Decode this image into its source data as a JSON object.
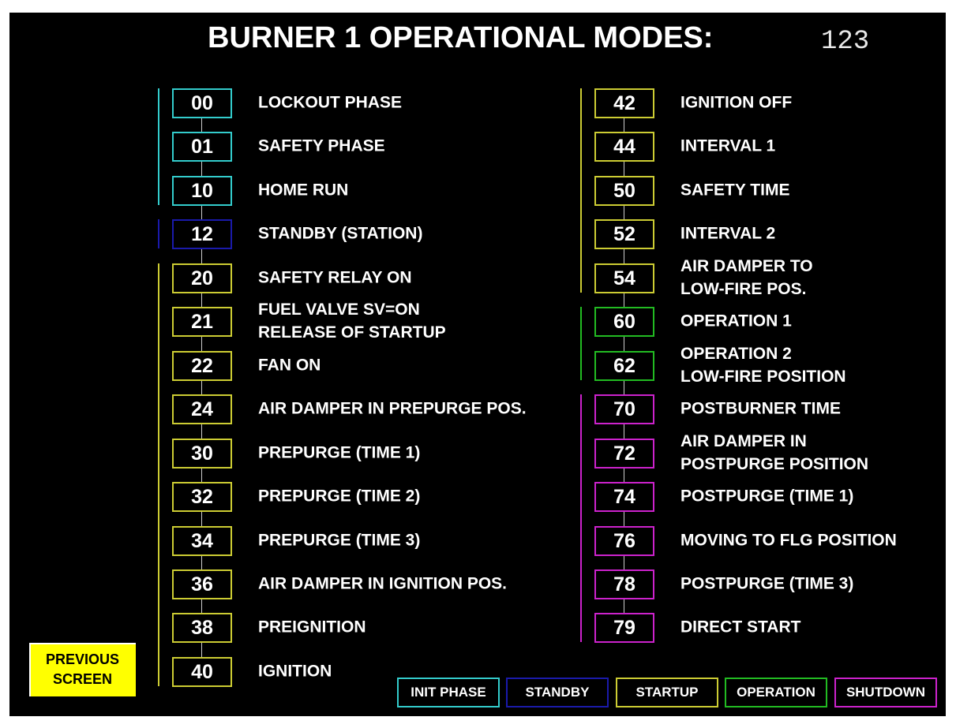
{
  "title": "BURNER 1 OPERATIONAL MODES:",
  "current_mode": "123",
  "colors": {
    "init": "#33cccc",
    "standby": "#1a1aaa",
    "startup": "#cccc33",
    "operation": "#22bb22",
    "shutdown": "#cc22cc"
  },
  "left_column": [
    {
      "code": "00",
      "label": "LOCKOUT PHASE",
      "group": "init"
    },
    {
      "code": "01",
      "label": "SAFETY PHASE",
      "group": "init"
    },
    {
      "code": "10",
      "label": "HOME RUN",
      "group": "init"
    },
    {
      "code": "12",
      "label": "STANDBY (STATION)",
      "group": "standby"
    },
    {
      "code": "20",
      "label": "SAFETY RELAY ON",
      "group": "startup"
    },
    {
      "code": "21",
      "label": "FUEL VALVE SV=ON\nRELEASE OF STARTUP",
      "group": "startup"
    },
    {
      "code": "22",
      "label": "FAN ON",
      "group": "startup"
    },
    {
      "code": "24",
      "label": "AIR DAMPER IN PREPURGE POS.",
      "group": "startup"
    },
    {
      "code": "30",
      "label": "PREPURGE (TIME 1)",
      "group": "startup"
    },
    {
      "code": "32",
      "label": "PREPURGE (TIME 2)",
      "group": "startup"
    },
    {
      "code": "34",
      "label": "PREPURGE (TIME 3)",
      "group": "startup"
    },
    {
      "code": "36",
      "label": "AIR DAMPER IN IGNITION POS.",
      "group": "startup"
    },
    {
      "code": "38",
      "label": "PREIGNITION",
      "group": "startup"
    },
    {
      "code": "40",
      "label": "IGNITION",
      "group": "startup"
    }
  ],
  "right_column": [
    {
      "code": "42",
      "label": "IGNITION OFF",
      "group": "startup"
    },
    {
      "code": "44",
      "label": "INTERVAL 1",
      "group": "startup"
    },
    {
      "code": "50",
      "label": "SAFETY TIME",
      "group": "startup"
    },
    {
      "code": "52",
      "label": "INTERVAL 2",
      "group": "startup"
    },
    {
      "code": "54",
      "label": "AIR DAMPER TO\nLOW-FIRE POS.",
      "group": "startup"
    },
    {
      "code": "60",
      "label": "OPERATION 1",
      "group": "operation"
    },
    {
      "code": "62",
      "label": "OPERATION 2\nLOW-FIRE POSITION",
      "group": "operation"
    },
    {
      "code": "70",
      "label": "POSTBURNER TIME",
      "group": "shutdown"
    },
    {
      "code": "72",
      "label": "AIR DAMPER IN\nPOSTPURGE POSITION",
      "group": "shutdown"
    },
    {
      "code": "74",
      "label": "POSTPURGE (TIME 1)",
      "group": "shutdown"
    },
    {
      "code": "76",
      "label": "MOVING TO FLG POSITION",
      "group": "shutdown"
    },
    {
      "code": "78",
      "label": "POSTPURGE (TIME 3)",
      "group": "shutdown"
    },
    {
      "code": "79",
      "label": "DIRECT START",
      "group": "shutdown"
    }
  ],
  "legend": [
    {
      "label": "INIT PHASE",
      "group": "init"
    },
    {
      "label": "STANDBY",
      "group": "standby"
    },
    {
      "label": "STARTUP",
      "group": "startup"
    },
    {
      "label": "OPERATION",
      "group": "operation"
    },
    {
      "label": "SHUTDOWN",
      "group": "shutdown"
    }
  ],
  "previous_button": "PREVIOUS\nSCREEN"
}
